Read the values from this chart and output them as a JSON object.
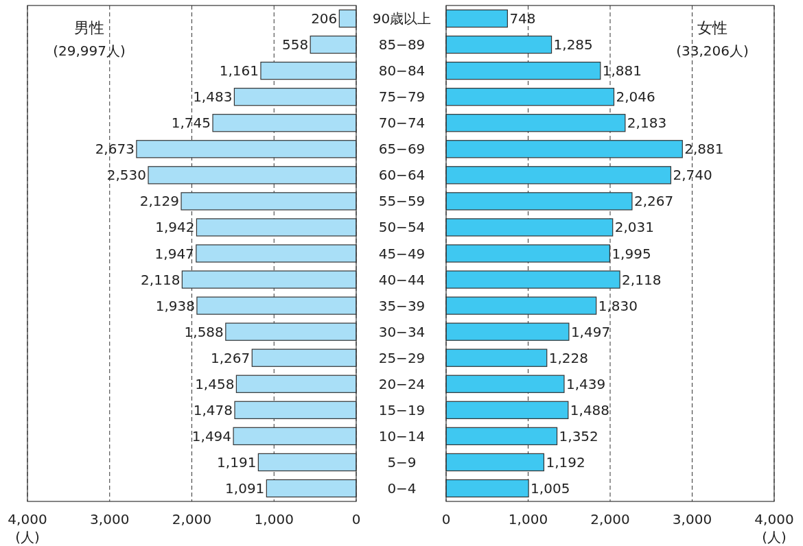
{
  "chart_data": [
    {
      "type": "bar",
      "orientation": "horizontal",
      "title": "男性",
      "subtitle": "(29,997人)",
      "xlabel": "(人)",
      "categories": [
        "90歳以上",
        "85−89",
        "80−84",
        "75−79",
        "70−74",
        "65−69",
        "60−64",
        "55−59",
        "50−54",
        "45−49",
        "40−44",
        "35−39",
        "30−34",
        "25−29",
        "20−24",
        "15−19",
        "10−14",
        "5−9",
        "0−4"
      ],
      "values": [
        206,
        558,
        1161,
        1483,
        1745,
        2673,
        2530,
        2129,
        1942,
        1947,
        2118,
        1938,
        1588,
        1267,
        1458,
        1478,
        1494,
        1191,
        1091
      ],
      "value_labels": [
        "206",
        "558",
        "1,161",
        "1,483",
        "1,745",
        "2,673",
        "2,530",
        "2,129",
        "1,942",
        "1,947",
        "2,118",
        "1,938",
        "1,588",
        "1,267",
        "1,458",
        "1,478",
        "1,494",
        "1,191",
        "1,091"
      ],
      "color": "#a9dff7",
      "xlim": [
        4000,
        0
      ],
      "xticks": [
        {
          "value": 4000,
          "label": "4,000"
        },
        {
          "value": 3000,
          "label": "3,000"
        },
        {
          "value": 2000,
          "label": "2,000"
        },
        {
          "value": 1000,
          "label": "1,000"
        },
        0
      ],
      "grid": "x"
    },
    {
      "type": "bar",
      "orientation": "horizontal",
      "title": "女性",
      "subtitle": "(33,206人)",
      "xlabel": "(人)",
      "categories": [
        "90歳以上",
        "85−89",
        "80−84",
        "75−79",
        "70−74",
        "65−69",
        "60−64",
        "55−59",
        "50−54",
        "45−49",
        "40−44",
        "35−39",
        "30−34",
        "25−29",
        "20−24",
        "15−19",
        "10−14",
        "5−9",
        "0−4"
      ],
      "values": [
        748,
        1285,
        1881,
        2046,
        2183,
        2881,
        2740,
        2267,
        2031,
        1995,
        2118,
        1830,
        1497,
        1228,
        1439,
        1488,
        1352,
        1192,
        1005
      ],
      "value_labels": [
        "748",
        "1,285",
        "1,881",
        "2,046",
        "2,183",
        "2,881",
        "2,740",
        "2,267",
        "2,031",
        "1,995",
        "2,118",
        "1,830",
        "1,497",
        "1,228",
        "1,439",
        "1,488",
        "1,352",
        "1,192",
        "1,005"
      ],
      "color": "#3fc8f1",
      "xlim": [
        0,
        4000
      ],
      "xticks": [
        0,
        {
          "value": 1000,
          "label": "1,000"
        },
        {
          "value": 2000,
          "label": "2,000"
        },
        {
          "value": 3000,
          "label": "3,000"
        },
        {
          "value": 4000,
          "label": "4,000"
        }
      ],
      "grid": "x",
      "tick_labels": "x"
    }
  ]
}
